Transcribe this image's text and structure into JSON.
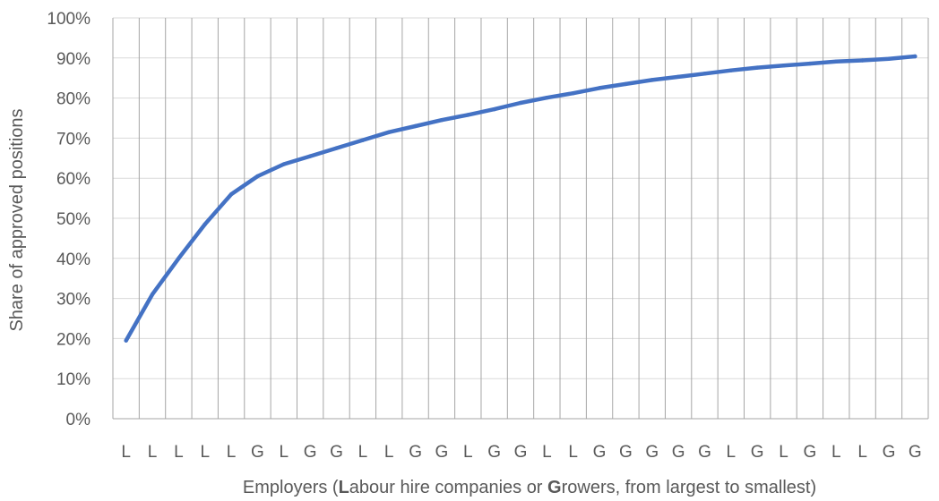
{
  "chart_data": {
    "type": "line",
    "title": "",
    "ylabel": "Share of approved positions",
    "xlabel_parts": [
      {
        "text": "Employers (",
        "bold": false
      },
      {
        "text": "L",
        "bold": true
      },
      {
        "text": "abour hire companies or ",
        "bold": false
      },
      {
        "text": "G",
        "bold": true
      },
      {
        "text": "rowers, from largest to smallest)",
        "bold": false
      }
    ],
    "categories": [
      "L",
      "L",
      "L",
      "L",
      "L",
      "G",
      "L",
      "G",
      "G",
      "L",
      "L",
      "G",
      "G",
      "L",
      "G",
      "G",
      "L",
      "L",
      "G",
      "G",
      "G",
      "G",
      "G",
      "L",
      "G",
      "L",
      "G",
      "L",
      "L",
      "G",
      "G"
    ],
    "ylim": [
      0,
      100
    ],
    "yticks": [
      "0%",
      "10%",
      "20%",
      "30%",
      "40%",
      "50%",
      "60%",
      "70%",
      "80%",
      "90%",
      "100%"
    ],
    "grid": {
      "vertical": true,
      "horizontal": true
    },
    "colors": {
      "line": "#4472C4",
      "grid_vertical": "#a6a6a6",
      "grid_horizontal": "#d9d9d9",
      "text": "#595959"
    },
    "series": [
      {
        "values": [
          19.5,
          31,
          40,
          48.5,
          56,
          60.5,
          63.5,
          65.5,
          67.5,
          69.5,
          71.5,
          73,
          74.5,
          75.8,
          77.2,
          78.8,
          80.1,
          81.2,
          82.5,
          83.5,
          84.5,
          85.3,
          86.1,
          86.9,
          87.6,
          88.1,
          88.6,
          89.1,
          89.4,
          89.8,
          90.4
        ]
      }
    ]
  }
}
